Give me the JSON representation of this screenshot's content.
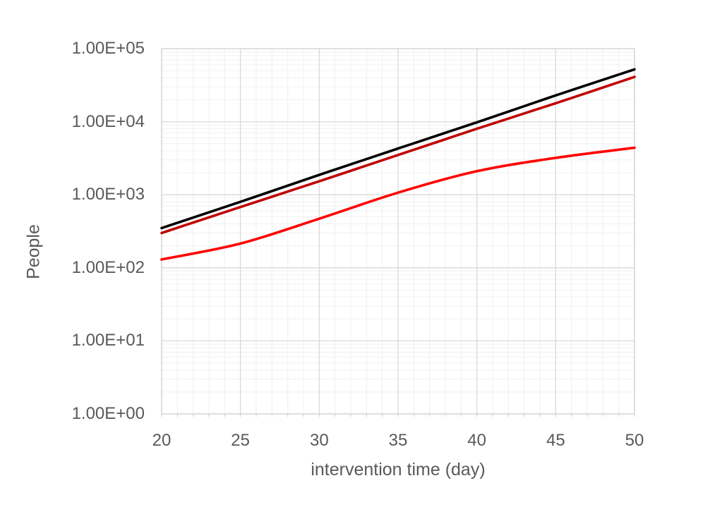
{
  "chart_data": {
    "type": "line",
    "title": "",
    "xlabel": "intervention time (day)",
    "ylabel": "People",
    "x": [
      20,
      25,
      30,
      35,
      40,
      45,
      50
    ],
    "x_tick_labels": [
      "20",
      "25",
      "30",
      "35",
      "40",
      "45",
      "50"
    ],
    "y_tick_labels": [
      "1.00E+00",
      "1.00E+01",
      "1.00E+02",
      "1.00E+03",
      "1.00E+04",
      "1.00E+05"
    ],
    "xlim": [
      20,
      50
    ],
    "ylim": [
      1,
      100000
    ],
    "y_scale": "log",
    "grid": {
      "major": true,
      "minor": true,
      "minor_x_step_days": 1
    },
    "legend": "none",
    "series": [
      {
        "name": "black line",
        "color": "#000000",
        "values": [
          350,
          800,
          1870,
          4300,
          9800,
          22900,
          52000
        ]
      },
      {
        "name": "dark red line",
        "color": "#C00000",
        "values": [
          300,
          680,
          1530,
          3500,
          8000,
          17900,
          41000
        ]
      },
      {
        "name": "red line",
        "color": "#FF0000",
        "values": [
          130,
          215,
          470,
          1070,
          2100,
          3200,
          4400
        ]
      }
    ],
    "colors": {
      "major_grid": "#D9D9D9",
      "minor_grid": "#F0F0F0",
      "plot_border": "#D3D3D3",
      "axis_text": "#595959",
      "background": "#FFFFFF"
    }
  }
}
